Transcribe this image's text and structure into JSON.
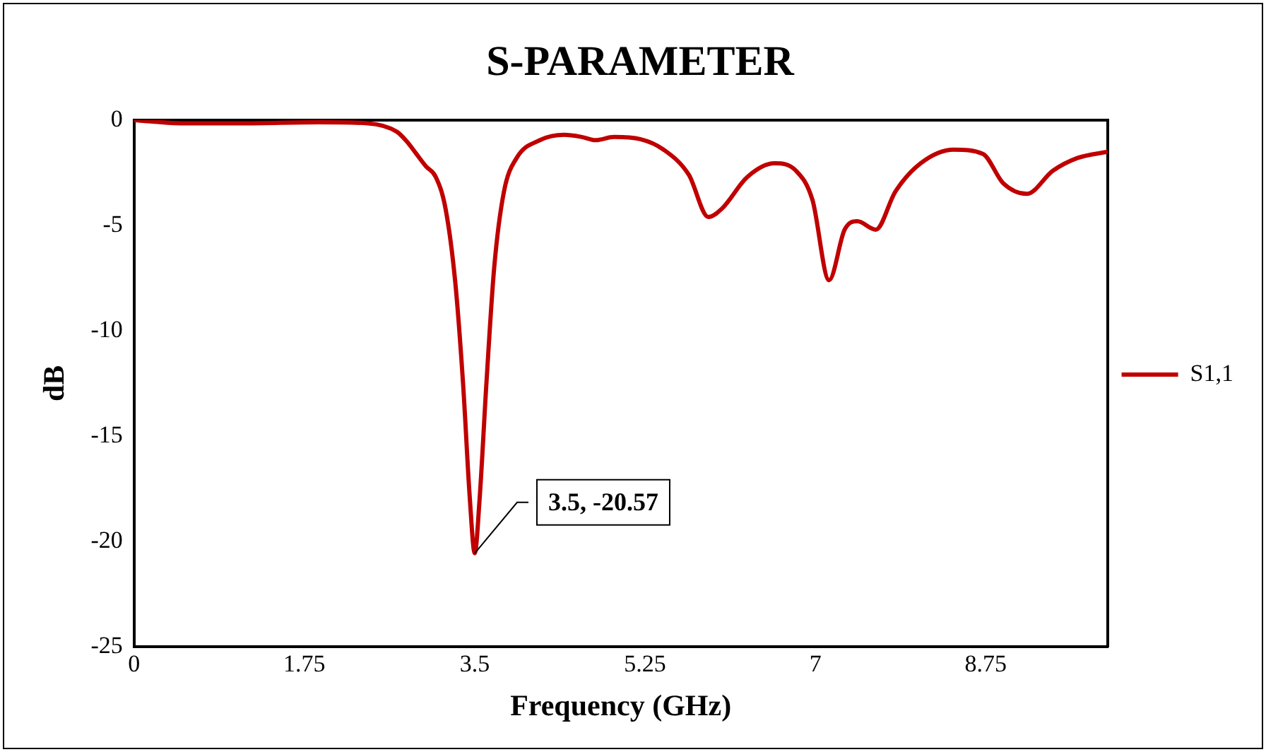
{
  "chart_data": {
    "type": "line",
    "title": "S-PARAMETER",
    "xlabel": "Frequency (GHz)",
    "ylabel": "dB",
    "xlim": [
      0,
      10
    ],
    "xticks": [
      0,
      1.75,
      3.5,
      5.25,
      7,
      8.75
    ],
    "ylim": [
      -25,
      0
    ],
    "yticks": [
      -25,
      -20,
      -15,
      -10,
      -5,
      0
    ],
    "grid": false,
    "legend": "right",
    "marker": "none",
    "line_style": "solid",
    "annotations": [
      {
        "text": "3.5, -20.57",
        "x": 3.5,
        "y": -20.57
      }
    ],
    "series": [
      {
        "name": "S1,1",
        "color": "#c00000",
        "x": [
          0,
          0.5,
          1.1,
          1.9,
          2.4,
          2.7,
          2.8,
          2.9,
          3.0,
          3.1,
          3.2,
          3.3,
          3.38,
          3.45,
          3.5,
          3.55,
          3.62,
          3.7,
          3.8,
          3.93,
          4.17,
          4.42,
          4.6,
          4.74,
          4.93,
          5.2,
          5.44,
          5.7,
          5.9,
          6.04,
          6.3,
          6.58,
          6.8,
          6.97,
          7.14,
          7.3,
          7.43,
          7.62,
          7.82,
          8.08,
          8.42,
          8.72,
          8.93,
          9.17,
          9.44,
          9.69,
          10
        ],
        "values": [
          0,
          -0.15,
          -0.15,
          -0.1,
          -0.15,
          -0.55,
          -1,
          -1.6,
          -2.2,
          -2.7,
          -4.2,
          -7.7,
          -12.5,
          -18,
          -20.57,
          -18,
          -12.5,
          -7,
          -3.4,
          -1.8,
          -0.95,
          -0.7,
          -0.8,
          -0.95,
          -0.8,
          -0.9,
          -1.4,
          -2.6,
          -4.6,
          -4.2,
          -2.7,
          -2.05,
          -2.4,
          -3.8,
          -7.6,
          -5.2,
          -4.8,
          -5.2,
          -3.4,
          -2.05,
          -1.4,
          -1.6,
          -3.0,
          -3.5,
          -2.4,
          -1.8,
          -1.5
        ]
      }
    ]
  }
}
